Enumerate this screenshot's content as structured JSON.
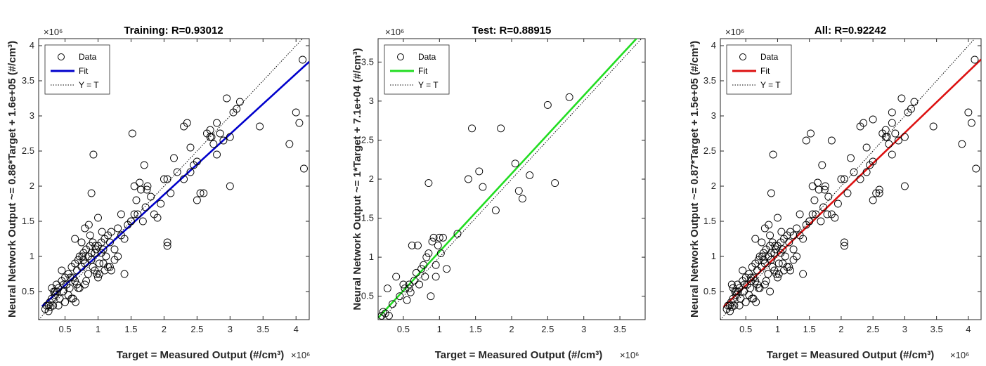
{
  "chart_data": [
    {
      "type": "scatter",
      "title": "Training: R=0.93012",
      "xlabel": "Target = Measured Output (#/cm³)",
      "ylabel": "Neural Network Output ~= 0.86*Target + 1.6e+05 (#/cm³)",
      "x_exponent": "×10⁶",
      "y_exponent": "×10⁶",
      "xlim": [
        0.1,
        4.2
      ],
      "ylim": [
        0.1,
        4.1
      ],
      "xticks": [
        0.5,
        1,
        1.5,
        2,
        2.5,
        3,
        3.5,
        4
      ],
      "yticks": [
        0.5,
        1,
        1.5,
        2,
        2.5,
        3,
        3.5,
        4
      ],
      "legend": {
        "position": "top-left",
        "data_label": "Data",
        "fit_label": "Fit",
        "yt_label": "Y = T"
      },
      "fit": {
        "slope": 0.86,
        "intercept": 0.16,
        "color": "#0000cc"
      },
      "series": [
        {
          "x": [
            0.2,
            0.22,
            0.25,
            0.27,
            0.28,
            0.3,
            0.32,
            0.33,
            0.35,
            0.37,
            0.4,
            0.42,
            0.45,
            0.47,
            0.5,
            0.52,
            0.55,
            0.57,
            0.6,
            0.62,
            0.65,
            0.68,
            0.7,
            0.72,
            0.75,
            0.78,
            0.8,
            0.82,
            0.85,
            0.88,
            0.9,
            0.92,
            0.95,
            0.97,
            1.0,
            1.02,
            1.05,
            1.08,
            1.1,
            1.12,
            1.15,
            1.18,
            1.2,
            1.25,
            1.3,
            1.35,
            1.4,
            1.45,
            1.5,
            1.55,
            0.3,
            0.35,
            0.45,
            0.55,
            0.65,
            0.75,
            0.85,
            0.95,
            1.05,
            1.15,
            1.25,
            0.4,
            0.6,
            0.8,
            1.0,
            1.2,
            1.4,
            0.5,
            0.7,
            0.9,
            1.1,
            1.3,
            0.25,
            0.38,
            0.48,
            0.58,
            0.68,
            0.78,
            0.88,
            0.98,
            1.08,
            1.18,
            0.62,
            0.72,
            0.82,
            0.92,
            1.02,
            0.66,
            0.76,
            0.86,
            0.96,
            1.06,
            0.9,
            0.93,
            1.52,
            1.6,
            1.63,
            1.7,
            1.74,
            1.8,
            1.85,
            1.9,
            1.95,
            2.0,
            2.05,
            2.1,
            1.65,
            1.75,
            1.68,
            1.72,
            1.55,
            1.58,
            2.05,
            2.15,
            2.2,
            2.3,
            2.35,
            2.4,
            2.45,
            2.5,
            2.55,
            2.6,
            2.65,
            2.7,
            2.72,
            2.75,
            2.8,
            2.85,
            2.9,
            3.0,
            3.05,
            3.1,
            3.15,
            2.3,
            2.4,
            2.5,
            2.7,
            2.8,
            2.95,
            3.0,
            3.45,
            3.9,
            4.0,
            4.05,
            4.12,
            4.1,
            1.0,
            1.5,
            0.8,
            0.65,
            2.05,
            1.35
          ],
          "y": [
            0.25,
            0.3,
            0.22,
            0.35,
            0.28,
            0.4,
            0.3,
            0.5,
            0.45,
            0.6,
            0.55,
            0.4,
            0.65,
            0.5,
            0.7,
            0.6,
            0.75,
            0.55,
            0.85,
            0.7,
            0.9,
            0.8,
            0.95,
            1.0,
            0.85,
            1.05,
            0.9,
            1.1,
            1.0,
            1.15,
            0.95,
            1.2,
            1.05,
            1.1,
            1.15,
            0.9,
            1.2,
            1.1,
            1.25,
            1.0,
            1.3,
            1.2,
            1.35,
            1.1,
            1.4,
            1.3,
            1.25,
            1.45,
            1.5,
            1.6,
            0.55,
            0.5,
            0.8,
            0.45,
            0.65,
            1.2,
            0.75,
            0.8,
            1.05,
            0.85,
            0.95,
            0.3,
            0.4,
            0.6,
            0.7,
            0.8,
            0.75,
            0.35,
            0.55,
            1.05,
            0.8,
            1.0,
            0.3,
            0.5,
            0.6,
            0.7,
            0.6,
            0.95,
            1.3,
            0.75,
            0.9,
            0.85,
            0.4,
            0.55,
            0.65,
            0.85,
            0.75,
            0.35,
            1.0,
            1.45,
            1.15,
            1.35,
            1.9,
            2.45,
            2.75,
            1.6,
            2.05,
            2.3,
            1.95,
            1.85,
            1.6,
            1.55,
            1.75,
            2.1,
            2.1,
            1.9,
            1.95,
            2.0,
            1.5,
            1.7,
            2.0,
            1.8,
            1.2,
            2.4,
            2.2,
            2.85,
            2.9,
            2.55,
            2.3,
            1.8,
            1.9,
            1.9,
            2.75,
            2.8,
            2.7,
            2.6,
            2.9,
            2.75,
            2.65,
            2.0,
            3.05,
            3.1,
            3.2,
            2.1,
            2.2,
            2.35,
            2.7,
            2.45,
            3.25,
            2.7,
            2.85,
            2.6,
            3.05,
            2.9,
            2.25,
            3.8,
            1.55,
            1.5,
            1.4,
            1.25,
            1.15,
            1.6
          ]
        }
      ]
    },
    {
      "type": "scatter",
      "title": "Test: R=0.88915",
      "xlabel": "Target = Measured Output (#/cm³)",
      "ylabel": "Neural Network Output ~= 1*Target + 7.1e+04 (#/cm³)",
      "x_exponent": "×10⁶",
      "y_exponent": "×10⁶",
      "xlim": [
        0.15,
        3.85
      ],
      "ylim": [
        0.2,
        3.8
      ],
      "xticks": [
        0.5,
        1,
        1.5,
        2,
        2.5,
        3,
        3.5
      ],
      "yticks": [
        0.5,
        1,
        1.5,
        2,
        2.5,
        3,
        3.5
      ],
      "legend": {
        "position": "top-left",
        "data_label": "Data",
        "fit_label": "Fit",
        "yt_label": "Y = T"
      },
      "fit": {
        "slope": 1.0,
        "intercept": 0.071,
        "color": "#22dd22"
      },
      "series": [
        {
          "x": [
            0.2,
            0.22,
            0.25,
            0.28,
            0.3,
            0.35,
            0.4,
            0.45,
            0.5,
            0.52,
            0.55,
            0.58,
            0.6,
            0.62,
            0.65,
            0.7,
            0.72,
            0.75,
            0.78,
            0.8,
            0.82,
            0.85,
            0.88,
            0.9,
            0.92,
            0.95,
            0.98,
            1.0,
            1.02,
            1.05,
            1.1,
            1.25,
            1.4,
            1.45,
            1.55,
            1.6,
            1.78,
            1.85,
            2.05,
            2.1,
            2.15,
            2.25,
            2.5,
            2.6,
            2.8,
            0.85,
            0.58,
            0.68,
            0.95
          ],
          "y": [
            0.25,
            0.3,
            0.28,
            0.6,
            0.25,
            0.4,
            0.75,
            0.5,
            0.65,
            0.6,
            0.45,
            0.65,
            0.55,
            1.15,
            0.7,
            1.15,
            0.65,
            0.85,
            0.9,
            0.75,
            1.0,
            1.05,
            0.5,
            1.2,
            1.25,
            0.9,
            1.15,
            1.25,
            1.05,
            1.25,
            0.85,
            1.3,
            2.0,
            2.65,
            2.1,
            1.9,
            1.6,
            2.65,
            2.2,
            1.85,
            1.75,
            2.05,
            2.95,
            1.95,
            3.05,
            1.95,
            0.6,
            0.8,
            0.75
          ]
        }
      ]
    },
    {
      "type": "scatter",
      "title": "All: R=0.92242",
      "xlabel": "Target = Measured Output (#/cm³)",
      "ylabel": "Neural Network Output ~= 0.87*Target + 1.5e+05 (#/cm³)",
      "x_exponent": "×10⁶",
      "y_exponent": "×10⁶",
      "xlim": [
        0.1,
        4.2
      ],
      "ylim": [
        0.1,
        4.1
      ],
      "xticks": [
        0.5,
        1,
        1.5,
        2,
        2.5,
        3,
        3.5,
        4
      ],
      "yticks": [
        0.5,
        1,
        1.5,
        2,
        2.5,
        3,
        3.5,
        4
      ],
      "legend": {
        "position": "top-left",
        "data_label": "Data",
        "fit_label": "Fit",
        "yt_label": "Y = T"
      },
      "fit": {
        "slope": 0.87,
        "intercept": 0.15,
        "color": "#dd1111"
      },
      "series": [
        {
          "x": [
            0.2,
            0.22,
            0.25,
            0.27,
            0.28,
            0.3,
            0.32,
            0.33,
            0.35,
            0.37,
            0.4,
            0.42,
            0.45,
            0.47,
            0.5,
            0.52,
            0.55,
            0.57,
            0.6,
            0.62,
            0.65,
            0.68,
            0.7,
            0.72,
            0.75,
            0.78,
            0.8,
            0.82,
            0.85,
            0.88,
            0.9,
            0.92,
            0.95,
            0.97,
            1.0,
            1.02,
            1.05,
            1.08,
            1.1,
            1.12,
            1.15,
            1.18,
            1.2,
            1.25,
            1.3,
            1.35,
            1.4,
            1.45,
            1.5,
            1.55,
            0.3,
            0.35,
            0.45,
            0.55,
            0.65,
            0.75,
            0.85,
            0.95,
            1.05,
            1.15,
            1.25,
            0.4,
            0.6,
            0.8,
            1.0,
            1.2,
            1.4,
            0.5,
            0.7,
            0.9,
            1.1,
            1.3,
            0.25,
            0.38,
            0.48,
            0.58,
            0.68,
            0.78,
            0.88,
            0.98,
            1.08,
            1.18,
            0.62,
            0.72,
            0.82,
            0.92,
            1.02,
            0.66,
            0.76,
            0.86,
            0.96,
            1.06,
            0.9,
            0.93,
            1.52,
            1.6,
            1.63,
            1.7,
            1.74,
            1.8,
            1.85,
            1.9,
            1.95,
            2.0,
            2.05,
            2.1,
            1.65,
            1.75,
            1.68,
            1.72,
            1.55,
            1.58,
            2.05,
            2.15,
            2.2,
            2.3,
            2.35,
            2.4,
            2.45,
            2.5,
            2.55,
            2.6,
            2.65,
            2.7,
            2.72,
            2.75,
            2.8,
            2.85,
            2.9,
            3.0,
            3.05,
            3.1,
            3.15,
            2.3,
            2.4,
            2.5,
            2.7,
            2.8,
            2.95,
            3.0,
            3.45,
            3.9,
            4.0,
            4.05,
            4.12,
            4.1,
            1.0,
            1.5,
            0.8,
            0.65,
            2.05,
            1.35,
            0.28,
            0.58,
            0.88,
            1.25,
            1.45,
            1.78,
            1.85,
            2.5,
            2.6,
            2.8,
            0.68
          ],
          "y": [
            0.25,
            0.3,
            0.22,
            0.35,
            0.28,
            0.4,
            0.3,
            0.5,
            0.45,
            0.6,
            0.55,
            0.4,
            0.65,
            0.5,
            0.7,
            0.6,
            0.75,
            0.55,
            0.85,
            0.7,
            0.9,
            0.8,
            0.95,
            1.0,
            0.85,
            1.05,
            0.9,
            1.1,
            1.0,
            1.15,
            0.95,
            1.2,
            1.05,
            1.1,
            1.15,
            0.9,
            1.2,
            1.1,
            1.25,
            1.0,
            1.3,
            1.2,
            1.35,
            1.1,
            1.4,
            1.3,
            1.25,
            1.45,
            1.5,
            1.6,
            0.55,
            0.5,
            0.8,
            0.45,
            0.65,
            1.2,
            0.75,
            0.8,
            1.05,
            0.85,
            0.95,
            0.3,
            0.4,
            0.6,
            0.7,
            0.8,
            0.75,
            0.35,
            0.55,
            1.05,
            0.8,
            1.0,
            0.3,
            0.5,
            0.6,
            0.7,
            0.6,
            0.95,
            1.3,
            0.75,
            0.9,
            0.85,
            0.4,
            0.55,
            0.65,
            0.85,
            0.75,
            0.35,
            1.0,
            1.45,
            1.15,
            1.35,
            1.9,
            2.45,
            2.75,
            1.6,
            2.05,
            2.3,
            1.95,
            1.85,
            1.6,
            1.55,
            1.75,
            2.1,
            2.1,
            1.9,
            1.95,
            2.0,
            1.5,
            1.7,
            2.0,
            1.8,
            1.2,
            2.4,
            2.2,
            2.85,
            2.9,
            2.55,
            2.3,
            1.8,
            1.9,
            1.9,
            2.75,
            2.8,
            2.7,
            2.6,
            2.9,
            2.75,
            2.65,
            2.0,
            3.05,
            3.1,
            3.2,
            2.1,
            2.2,
            2.35,
            2.7,
            2.45,
            3.25,
            2.7,
            2.85,
            2.6,
            3.05,
            2.9,
            2.25,
            3.8,
            1.55,
            1.5,
            1.4,
            1.25,
            1.15,
            1.6,
            0.6,
            0.65,
            0.5,
            1.3,
            2.65,
            1.6,
            2.65,
            2.95,
            1.95,
            3.05,
            0.8
          ]
        }
      ]
    }
  ]
}
